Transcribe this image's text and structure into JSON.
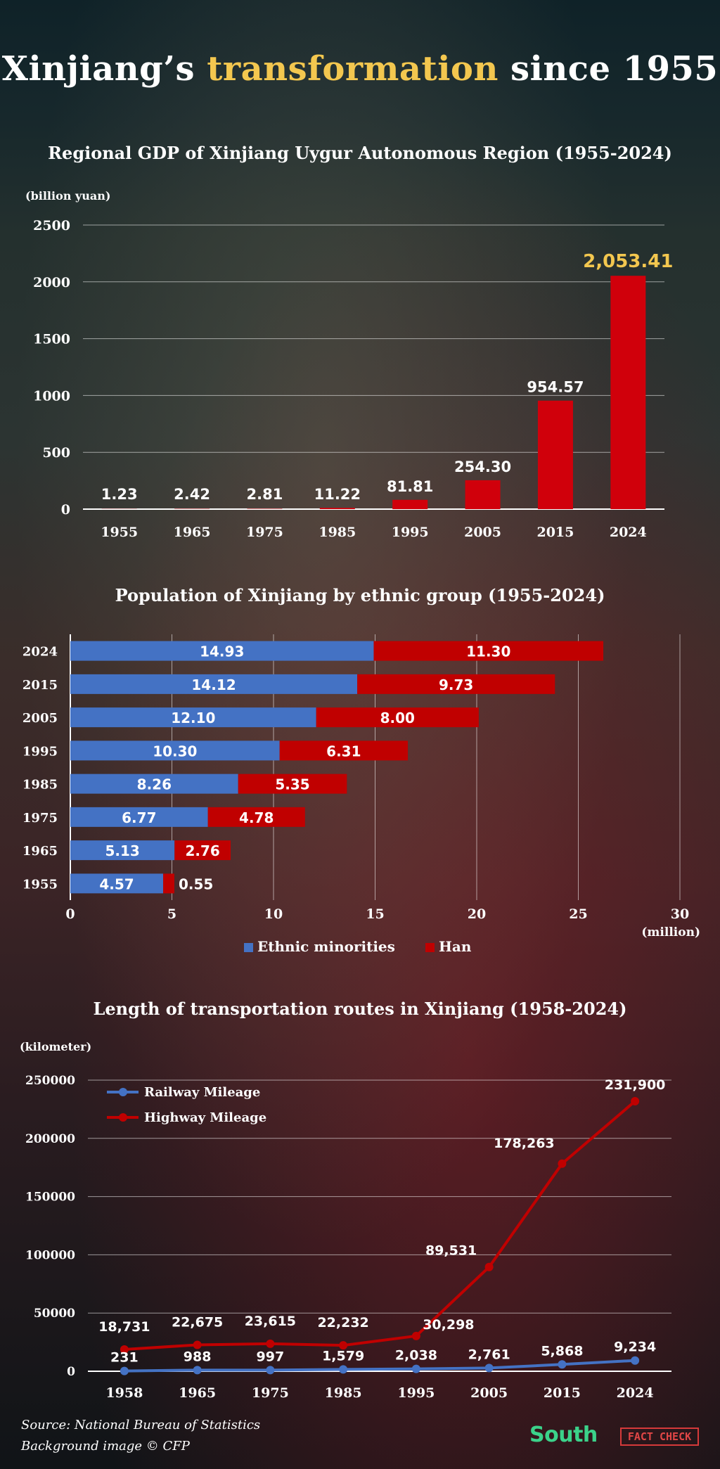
{
  "header": {
    "title_prefix": "Xinjiang’s ",
    "title_highlight": "transformation",
    "title_suffix": " since 1955"
  },
  "footer": {
    "source": "Source: National Bureau of Statistics",
    "credit": "Background image © CFP",
    "logo_south": "South",
    "logo_factcheck": "FACT CHECK"
  },
  "colors": {
    "gdp_bar": "#d0000b",
    "highlight": "#f3c74f",
    "ethnic_bar": "#4472c4",
    "han_bar": "#c00000",
    "railway_line": "#4472c4",
    "highway_line": "#c00000"
  },
  "chart_data": [
    {
      "type": "bar",
      "title": "Regional GDP of Xinjiang Uygur Autonomous Region (1955-2024)",
      "unit_label": "(billion yuan)",
      "categories": [
        "1955",
        "1965",
        "1975",
        "1985",
        "1995",
        "2005",
        "2015",
        "2024"
      ],
      "values": [
        1.23,
        2.42,
        2.81,
        11.22,
        81.81,
        254.3,
        954.57,
        2053.41
      ],
      "value_labels": [
        "1.23",
        "2.42",
        "2.81",
        "11.22",
        "81.81",
        "254.30",
        "954.57",
        "2,053.41"
      ],
      "ylim": [
        0,
        2500
      ],
      "yticks": [
        "0",
        "500",
        "1000",
        "1500",
        "2000",
        "2500"
      ],
      "grid": true
    },
    {
      "type": "bar",
      "orientation": "horizontal",
      "stacked": true,
      "title": "Population of Xinjiang by ethnic group (1955-2024)",
      "unit_label": "(million)",
      "categories": [
        "2024",
        "2015",
        "2005",
        "1995",
        "1985",
        "1975",
        "1965",
        "1955"
      ],
      "series": [
        {
          "name": "Ethnic minorities",
          "values": [
            14.93,
            14.12,
            12.1,
            10.3,
            8.26,
            6.77,
            5.13,
            4.57
          ],
          "labels": [
            "14.93",
            "14.12",
            "12.10",
            "10.30",
            "8.26",
            "6.77",
            "5.13",
            "4.57"
          ]
        },
        {
          "name": "Han",
          "values": [
            11.3,
            9.73,
            8.0,
            6.31,
            5.35,
            4.78,
            2.76,
            0.55
          ],
          "labels": [
            "11.30",
            "9.73",
            "8.00",
            "6.31",
            "5.35",
            "4.78",
            "2.76",
            "0.55"
          ]
        }
      ],
      "xlim": [
        0,
        30
      ],
      "xticks": [
        "0",
        "5",
        "10",
        "15",
        "20",
        "25",
        "30"
      ],
      "grid": true,
      "legend": "bottom"
    },
    {
      "type": "line",
      "title": "Length of transportation routes in Xinjiang (1958-2024)",
      "unit_label": "(kilometer)",
      "categories": [
        "1958",
        "1965",
        "1975",
        "1985",
        "1995",
        "2005",
        "2015",
        "2024"
      ],
      "series": [
        {
          "name": "Railway Mileage",
          "values": [
            231,
            988,
            997,
            1579,
            2038,
            2761,
            5868,
            9234
          ],
          "labels": [
            "231",
            "988",
            "997",
            "1,579",
            "2,038",
            "2,761",
            "5,868",
            "9,234"
          ]
        },
        {
          "name": "Highway Mileage",
          "values": [
            18731,
            22675,
            23615,
            22232,
            30298,
            89531,
            178263,
            231900
          ],
          "labels": [
            "18,731",
            "22,675",
            "23,615",
            "22,232",
            "30,298",
            "89,531",
            "178,263",
            "231,900"
          ]
        }
      ],
      "ylim": [
        0,
        250000
      ],
      "yticks": [
        "0",
        "50000",
        "100000",
        "150000",
        "200000",
        "250000"
      ],
      "grid": true,
      "legend": "top-left"
    }
  ]
}
